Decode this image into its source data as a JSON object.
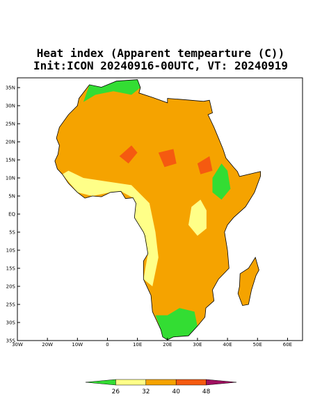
{
  "title": "Heat index (Apparent tempearture (C))",
  "subtitle": "Init:ICON 20240916-00UTC, VT: 20240919",
  "map": {
    "lonlim": [
      -30,
      65
    ],
    "latlim": [
      -35,
      37.7
    ],
    "lat_ticks": [
      {
        "value": 35,
        "label": "35N"
      },
      {
        "value": 30,
        "label": "30N"
      },
      {
        "value": 25,
        "label": "25N"
      },
      {
        "value": 20,
        "label": "20N"
      },
      {
        "value": 15,
        "label": "15N"
      },
      {
        "value": 10,
        "label": "10N"
      },
      {
        "value": 5,
        "label": "5N"
      },
      {
        "value": 0,
        "label": "EQ"
      },
      {
        "value": -5,
        "label": "5S"
      },
      {
        "value": -10,
        "label": "10S"
      },
      {
        "value": -15,
        "label": "15S"
      },
      {
        "value": -20,
        "label": "20S"
      },
      {
        "value": -25,
        "label": "25S"
      },
      {
        "value": -30,
        "label": "30S"
      },
      {
        "value": -35,
        "label": "35S"
      }
    ],
    "lon_ticks": [
      {
        "value": -30,
        "label": "30W"
      },
      {
        "value": -20,
        "label": "20W"
      },
      {
        "value": -10,
        "label": "10W"
      },
      0,
      {
        "value": 10,
        "label": "10E"
      },
      {
        "value": 20,
        "label": "20E"
      },
      {
        "value": 30,
        "label": "30E"
      },
      {
        "value": 40,
        "label": "40E"
      },
      {
        "value": 50,
        "label": "50E"
      },
      {
        "value": 60,
        "label": "60E"
      }
    ]
  },
  "colorbar": {
    "levels": [
      26,
      32,
      40,
      48
    ],
    "colors": [
      "#33dd33",
      "#ffff88",
      "#f5a300",
      "#f55a10",
      "#a01060"
    ]
  }
}
